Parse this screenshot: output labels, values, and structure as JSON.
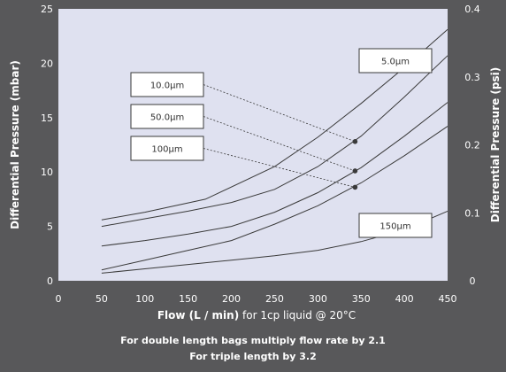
{
  "chart_data": {
    "type": "line",
    "xlabel": "Flow (L / min)",
    "xlabel_suffix": "for 1cp liquid @ 20°C",
    "ylabel_left": "Differential Pressure (mbar)",
    "ylabel_right": "Differential Pressure (psi)",
    "xlim": [
      0,
      450
    ],
    "ylim_left": [
      0,
      25
    ],
    "ylim_right": [
      0,
      0.4
    ],
    "x_ticks": [
      0,
      50,
      100,
      150,
      200,
      250,
      300,
      350,
      400,
      450
    ],
    "y_ticks_left": [
      0,
      5,
      10,
      15,
      20,
      25
    ],
    "y_ticks_right": [
      0,
      0.1,
      0.2,
      0.3,
      0.4
    ],
    "y_tick_labels_right": [
      "0",
      "0.1",
      "0.2",
      "0.3",
      "0.4"
    ],
    "grid": false,
    "plot_background": "#dfe1f0",
    "page_background": "#58585a",
    "line_color": "#3a3a3a",
    "series": [
      {
        "name": "5.0μm",
        "x": [
          50,
          100,
          170,
          250,
          300,
          350,
          400,
          450
        ],
        "y": [
          5.6,
          6.3,
          7.5,
          10.5,
          13.2,
          16.3,
          19.6,
          23.1
        ]
      },
      {
        "name": "10.0μm",
        "x": [
          50,
          100,
          150,
          200,
          250,
          300,
          350,
          400,
          450
        ],
        "y": [
          5.0,
          5.7,
          6.4,
          7.2,
          8.4,
          10.5,
          13.3,
          16.9,
          20.7
        ]
      },
      {
        "name": "50.0μm",
        "x": [
          50,
          100,
          150,
          200,
          250,
          300,
          350,
          400,
          450
        ],
        "y": [
          3.2,
          3.7,
          4.3,
          5.0,
          6.3,
          8.1,
          10.4,
          13.3,
          16.4
        ]
      },
      {
        "name": "100μm",
        "x": [
          50,
          100,
          150,
          200,
          250,
          300,
          350,
          400,
          450
        ],
        "y": [
          1.0,
          1.9,
          2.8,
          3.7,
          5.2,
          6.9,
          9.0,
          11.5,
          14.2
        ]
      },
      {
        "name": "150μm",
        "x": [
          50,
          100,
          150,
          200,
          250,
          300,
          350,
          400,
          450
        ],
        "y": [
          0.7,
          1.1,
          1.5,
          1.9,
          2.3,
          2.8,
          3.6,
          4.7,
          6.4
        ]
      }
    ],
    "markers": [
      {
        "series": "10.0μm",
        "x": 343,
        "y": 12.8
      },
      {
        "series": "50.0μm",
        "x": 343,
        "y": 10.1
      },
      {
        "series": "100μm",
        "x": 343,
        "y": 8.6
      }
    ],
    "annotations": [
      {
        "label": "10.0μm",
        "points_to": "10.0μm"
      },
      {
        "label": "50.0μm",
        "points_to": "50.0μm"
      },
      {
        "label": "100μm",
        "points_to": "100μm"
      },
      {
        "label": "5.0μm",
        "points_to": "5.0μm"
      },
      {
        "label": "150μm",
        "points_to": "150μm"
      }
    ]
  },
  "notes": {
    "line1": "For double length bags multiply flow rate by 2.1",
    "line2": "For triple length by 3.2"
  }
}
